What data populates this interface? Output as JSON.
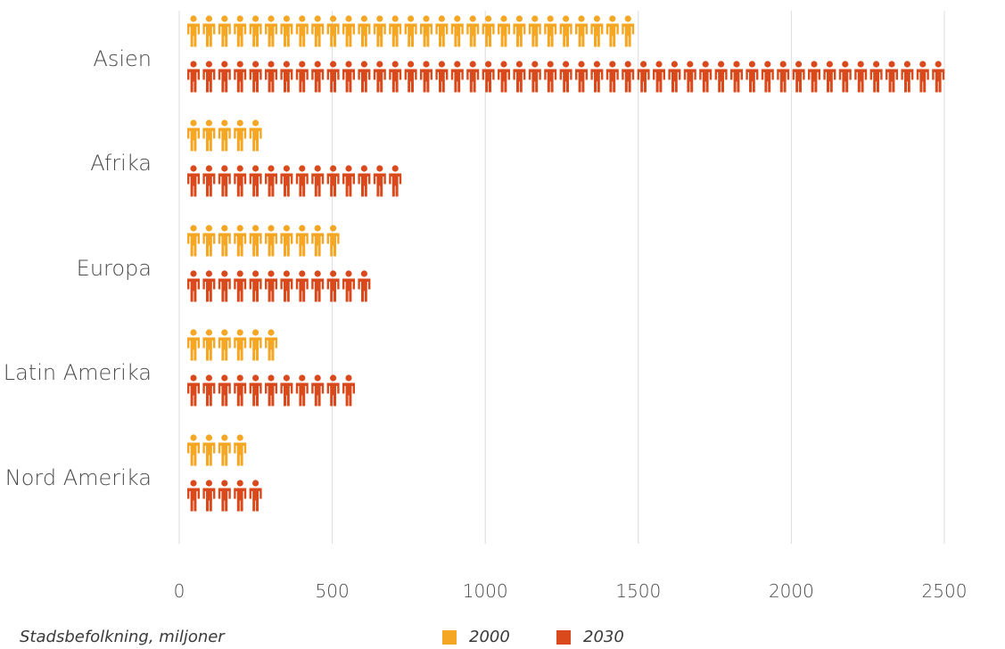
{
  "chart_data": {
    "type": "bar",
    "orientation": "horizontal",
    "style": "pictograph",
    "categories": [
      "Asien",
      "Afrika",
      "Europa",
      "Latin Amerika",
      "Nord Amerika"
    ],
    "series": [
      {
        "name": "2000",
        "color": "#f5a623",
        "values": [
          1470,
          270,
          520,
          350,
          220
        ]
      },
      {
        "name": "2030",
        "color": "#d9491c",
        "values": [
          2530,
          720,
          610,
          570,
          280
        ]
      }
    ],
    "xlim": [
      0,
      2500
    ],
    "xticks": [
      0,
      500,
      1000,
      1500,
      2000,
      2500
    ],
    "grid": true,
    "legend_title": "Stadsbefolkning, miljoner",
    "legend_position": "bottom"
  }
}
